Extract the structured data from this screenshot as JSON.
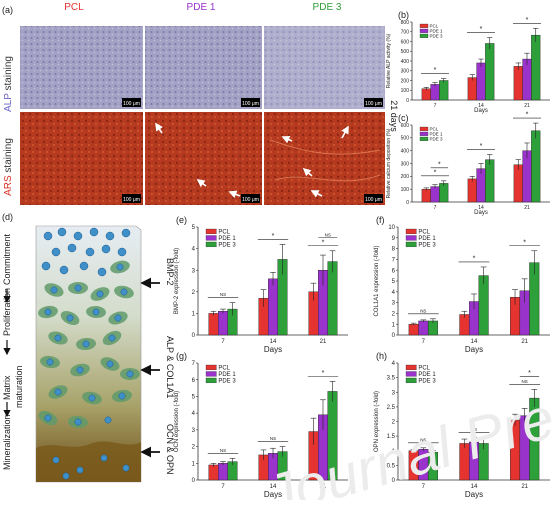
{
  "figure": {
    "panel_labels": [
      "(a)",
      "(b)",
      "(c)",
      "(d)",
      "(e)",
      "(f)",
      "(g)",
      "(h)"
    ],
    "samples": [
      {
        "label": "PCL",
        "color": "#e5332f"
      },
      {
        "label": "PDE 1",
        "color": "#9933cc"
      },
      {
        "label": "PDE 3",
        "color": "#2ea03a"
      }
    ],
    "row_labels": [
      {
        "stain": "ALP",
        "rest": " staining",
        "stain_color": "#6a62c8"
      },
      {
        "stain": "ARS",
        "rest": " staining",
        "stain_color": "#d83228"
      }
    ],
    "scale_bar": "100 μm",
    "side_label": "21 days",
    "micrograph_colors": {
      "alp": "#9a98be",
      "ars": "#b0381e"
    },
    "diagram": {
      "stages": [
        "Commitment",
        "Proliferation",
        "Matrix maturation",
        "Mineralization"
      ],
      "markers": [
        "BMP-2",
        "ALP & COL1A1",
        "OCN & OPN"
      ]
    },
    "watermark": "Journal Pre-proof",
    "sig": "NS"
  },
  "chart_data": [
    {
      "panel": "(b)",
      "type": "bar",
      "categories": [
        "7",
        "14",
        "21"
      ],
      "xlabel": "Days",
      "ylabel": "Relative ALP activity (%)",
      "ylim": [
        0,
        800
      ],
      "yticks": [
        0,
        100,
        200,
        300,
        400,
        500,
        600,
        700,
        800
      ],
      "series": [
        {
          "name": "PCL",
          "values": [
            115,
            230,
            345
          ],
          "errors": [
            15,
            30,
            35
          ]
        },
        {
          "name": "PDE 1",
          "values": [
            160,
            380,
            420
          ],
          "errors": [
            20,
            40,
            60
          ]
        },
        {
          "name": "PDE 3",
          "values": [
            200,
            580,
            665
          ],
          "errors": [
            20,
            60,
            70
          ]
        }
      ],
      "significance": [
        {
          "group": 0,
          "label": "*"
        },
        {
          "group": 1,
          "label": "*"
        },
        {
          "group": 2,
          "label": "*"
        }
      ]
    },
    {
      "panel": "(c)",
      "type": "bar",
      "categories": [
        "7",
        "14",
        "21"
      ],
      "xlabel": "Days",
      "ylabel": "Relative calcium deposition (%)",
      "ylim": [
        0,
        600
      ],
      "yticks": [
        0,
        100,
        200,
        300,
        400,
        500,
        600
      ],
      "series": [
        {
          "name": "PCL",
          "values": [
            100,
            180,
            290
          ],
          "errors": [
            10,
            20,
            40
          ]
        },
        {
          "name": "PDE 1",
          "values": [
            120,
            260,
            400
          ],
          "errors": [
            15,
            40,
            60
          ]
        },
        {
          "name": "PDE 3",
          "values": [
            145,
            330,
            555
          ],
          "errors": [
            20,
            40,
            60
          ]
        }
      ],
      "significance": [
        {
          "group": 0,
          "label": "*"
        },
        {
          "group": 0,
          "label": "*"
        },
        {
          "group": 1,
          "label": "*"
        },
        {
          "group": 2,
          "label": "*"
        }
      ]
    },
    {
      "panel": "(e)",
      "type": "bar",
      "categories": [
        "7",
        "14",
        "21"
      ],
      "xlabel": "Days",
      "ylabel": "BMP-2 expression (-fold)",
      "ylim": [
        0,
        5
      ],
      "yticks": [
        0,
        1,
        2,
        3,
        4,
        5
      ],
      "series": [
        {
          "name": "PCL",
          "values": [
            1.0,
            1.7,
            2.0
          ],
          "errors": [
            0.1,
            0.4,
            0.4
          ]
        },
        {
          "name": "PDE 1",
          "values": [
            1.1,
            2.6,
            3.0
          ],
          "errors": [
            0.1,
            0.3,
            0.7
          ]
        },
        {
          "name": "PDE 3",
          "values": [
            1.2,
            3.5,
            3.4
          ],
          "errors": [
            0.3,
            0.7,
            0.5
          ]
        }
      ],
      "significance": [
        {
          "group": 0,
          "label": "NS"
        },
        {
          "group": 1,
          "label": "*"
        },
        {
          "group": 2,
          "label": "*"
        },
        {
          "group": 2,
          "label": "NS"
        }
      ]
    },
    {
      "panel": "(f)",
      "type": "bar",
      "categories": [
        "7",
        "14",
        "21"
      ],
      "xlabel": "Days",
      "ylabel": "COL1A1 expression (-fold)",
      "ylim": [
        0,
        10
      ],
      "yticks": [
        0,
        1,
        2,
        3,
        4,
        5,
        6,
        7,
        8,
        9,
        10
      ],
      "series": [
        {
          "name": "PCL",
          "values": [
            1.0,
            1.9,
            3.5
          ],
          "errors": [
            0.1,
            0.3,
            0.7
          ]
        },
        {
          "name": "PDE 1",
          "values": [
            1.3,
            3.1,
            4.1
          ],
          "errors": [
            0.1,
            0.7,
            1.1
          ]
        },
        {
          "name": "PDE 3",
          "values": [
            1.3,
            5.5,
            6.7
          ],
          "errors": [
            0.2,
            0.8,
            1.1
          ]
        }
      ],
      "significance": [
        {
          "group": 0,
          "label": "NS"
        },
        {
          "group": 1,
          "label": "*"
        },
        {
          "group": 2,
          "label": "*"
        }
      ]
    },
    {
      "panel": "(g)",
      "type": "bar",
      "categories": [
        "7",
        "14",
        "21"
      ],
      "xlabel": "Days",
      "ylabel": "OCN expression (-fold)",
      "ylim": [
        0,
        7
      ],
      "yticks": [
        0,
        1,
        2,
        3,
        4,
        5,
        6,
        7
      ],
      "series": [
        {
          "name": "PCL",
          "values": [
            0.9,
            1.5,
            2.9
          ],
          "errors": [
            0.1,
            0.3,
            0.8
          ]
        },
        {
          "name": "PDE 1",
          "values": [
            1.0,
            1.6,
            3.9
          ],
          "errors": [
            0.1,
            0.3,
            0.9
          ]
        },
        {
          "name": "PDE 3",
          "values": [
            1.1,
            1.7,
            5.3
          ],
          "errors": [
            0.2,
            0.3,
            0.6
          ]
        }
      ],
      "significance": [
        {
          "group": 0,
          "label": "NS"
        },
        {
          "group": 1,
          "label": "NS"
        },
        {
          "group": 2,
          "label": "*"
        }
      ]
    },
    {
      "panel": "(h)",
      "type": "bar",
      "categories": [
        "7",
        "14",
        "21"
      ],
      "xlabel": "Days",
      "ylabel": "OPN expression (-fold)",
      "ylim": [
        0,
        4.0
      ],
      "yticks": [
        0.0,
        0.5,
        1.0,
        1.5,
        2.0,
        2.5,
        3.0,
        3.5,
        4.0
      ],
      "series": [
        {
          "name": "PCL",
          "values": [
            1.0,
            1.25,
            2.05
          ],
          "errors": [
            0.05,
            0.15,
            0.2
          ]
        },
        {
          "name": "PDE 1",
          "values": [
            1.05,
            1.3,
            2.2
          ],
          "errors": [
            0.05,
            0.15,
            0.25
          ]
        },
        {
          "name": "PDE 3",
          "values": [
            0.95,
            1.25,
            2.8
          ],
          "errors": [
            0.05,
            0.2,
            0.3
          ]
        }
      ],
      "significance": [
        {
          "group": 0,
          "label": "NS"
        },
        {
          "group": 1,
          "label": "NS"
        },
        {
          "group": 2,
          "label": "NS"
        },
        {
          "group": 2,
          "label": "*"
        }
      ]
    }
  ]
}
